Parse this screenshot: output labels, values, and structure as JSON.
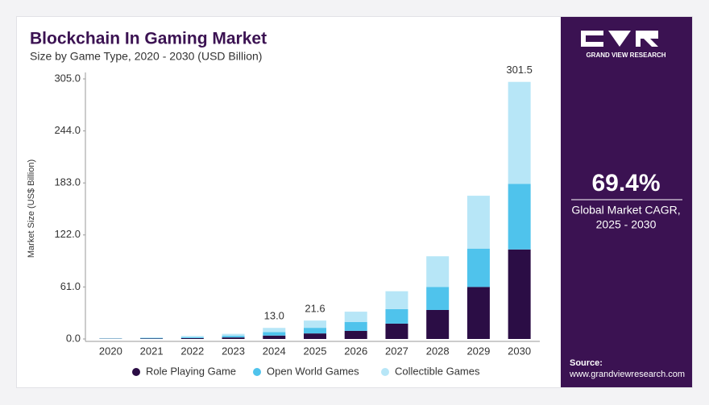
{
  "chart_data": {
    "type": "stacked-bar",
    "title": "Blockchain In Gaming Market",
    "subtitle": "Size by Game Type, 2020 - 2030 (USD Billion)",
    "ylabel": "Market Size (US$ Billion)",
    "categories": [
      "2020",
      "2021",
      "2022",
      "2023",
      "2024",
      "2025",
      "2026",
      "2027",
      "2028",
      "2029",
      "2030"
    ],
    "series": [
      {
        "name": "Role Playing Game",
        "color": "#2b0d45",
        "values": [
          0.3,
          0.5,
          1.0,
          1.8,
          4.0,
          6.5,
          9.5,
          18,
          34,
          61,
          105
        ]
      },
      {
        "name": "Open World Games",
        "color": "#4fc3ec",
        "values": [
          0.3,
          0.6,
          1.1,
          1.9,
          4.0,
          6.6,
          10.5,
          17,
          27,
          45,
          77
        ]
      },
      {
        "name": "Collectible Games",
        "color": "#b7e6f7",
        "values": [
          0.5,
          0.8,
          1.4,
          2.3,
          5.0,
          8.5,
          12,
          21,
          36,
          62,
          119.5
        ]
      }
    ],
    "totals": [
      null,
      null,
      null,
      null,
      13.0,
      21.6,
      null,
      null,
      null,
      null,
      301.5
    ],
    "total_labels": [
      null,
      null,
      null,
      null,
      "13.0",
      "21.6",
      null,
      null,
      null,
      null,
      "301.5"
    ],
    "ylim": [
      0,
      305
    ],
    "yticks": [
      {
        "value": 0,
        "label": "0.0"
      },
      {
        "value": 61,
        "label": "61.0"
      },
      {
        "value": 122,
        "label": "122.0"
      },
      {
        "value": 183,
        "label": "183.0"
      },
      {
        "value": 244,
        "label": "244.0"
      },
      {
        "value": 305,
        "label": "305.0"
      }
    ],
    "grid": false,
    "legend": "bottom"
  },
  "panel": {
    "brand": "GRAND VIEW RESEARCH",
    "cagr": "69.4%",
    "cagr_caption": [
      "Global Market CAGR,",
      "2025 - 2030"
    ],
    "source_label": "Source:",
    "source_url": "www.grandviewresearch.com"
  }
}
